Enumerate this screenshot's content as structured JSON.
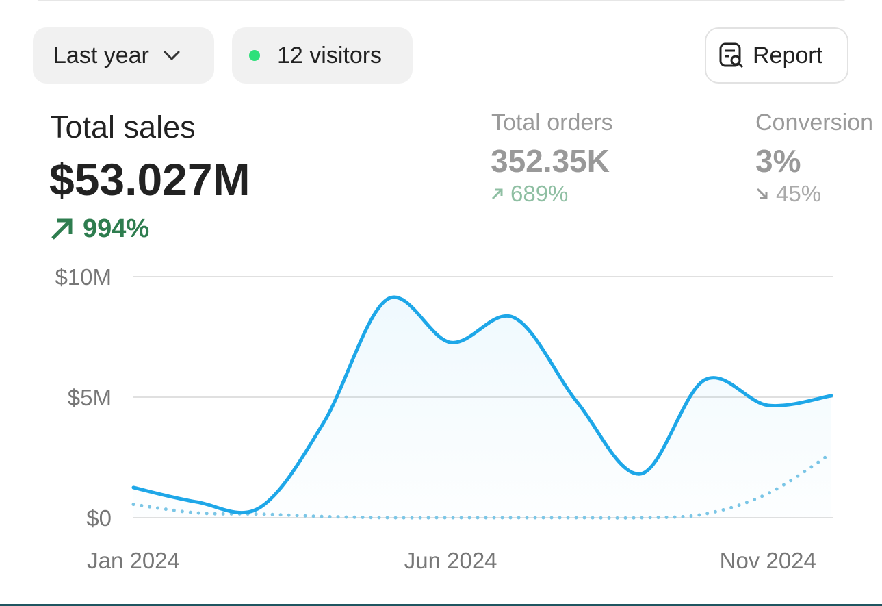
{
  "toolbar": {
    "period": "Last year",
    "visitors": "12 visitors",
    "report": "Report"
  },
  "metrics": [
    {
      "label": "Total sales",
      "value": "$53.027M",
      "change": "994%"
    },
    {
      "label": "Total orders",
      "value": "352.35K",
      "change": "689%"
    },
    {
      "label": "Conversion",
      "value": "3%",
      "change": "45%"
    }
  ],
  "chart_data": {
    "type": "line",
    "categories": [
      "Jan 2024",
      null,
      null,
      null,
      null,
      "Jun 2024",
      null,
      null,
      null,
      null,
      "Nov 2024",
      null
    ],
    "series": [
      {
        "color": "#1ea7e8",
        "style": "solid",
        "values": [
          1.25,
          0.65,
          0.43,
          3.95,
          9.06,
          7.27,
          8.3,
          4.77,
          1.82,
          5.71,
          4.66,
          5.06
        ]
      },
      {
        "color": "#7cc6e6",
        "style": "dotted",
        "values": [
          0.55,
          0.2,
          0.15,
          0.05,
          0,
          0,
          0,
          0,
          0,
          0.15,
          1.0,
          2.67
        ]
      }
    ],
    "ylim": [
      0,
      10
    ],
    "yticks": [
      {
        "value": 0,
        "label": "$0"
      },
      {
        "value": 5,
        "label": "$5M"
      },
      {
        "value": 10,
        "label": "$10M"
      }
    ],
    "grid": true
  }
}
